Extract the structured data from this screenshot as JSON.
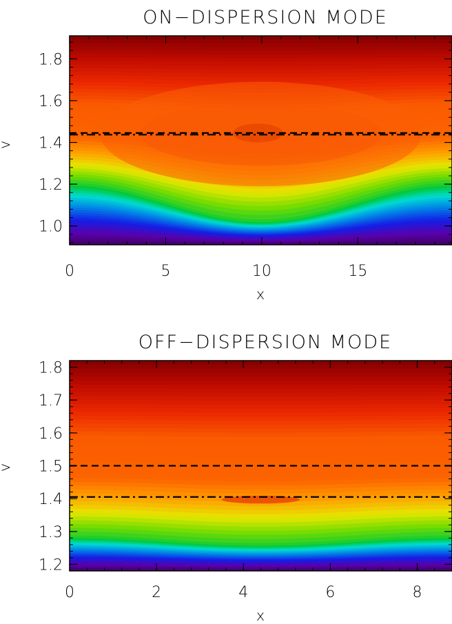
{
  "chart_data": [
    {
      "type": "heatmap",
      "title": "ON−DISPERSION MODE",
      "xlabel": "x",
      "ylabel": "v",
      "xlim": [
        0,
        19.9
      ],
      "ylim": [
        0.91,
        1.91
      ],
      "xticks": [
        0,
        5,
        10,
        15
      ],
      "yticks": [
        1.0,
        1.2,
        1.4,
        1.6,
        1.8
      ],
      "xtick_labels": [
        "0",
        "5",
        "10",
        "15"
      ],
      "ytick_labels": [
        "1.0",
        "1.2",
        "1.4",
        "1.6",
        "1.8"
      ],
      "colormap": "rainbow",
      "field": {
        "lower_boundary": {
          "mean": 1.11,
          "amplitude": 0.09,
          "period": 19.9,
          "phase_center": 9.95
        },
        "vortex": {
          "center_x": 9.95,
          "center_v": 1.44,
          "half_width_v": 0.25
        },
        "core": {
          "center_x": 9.8,
          "center_v": 1.445,
          "rx": 1.3,
          "rv": 0.045
        }
      },
      "reference_lines": [
        {
          "style": "dashed",
          "v": 1.445
        },
        {
          "style": "dash-dot",
          "v": 1.437
        }
      ],
      "grid": false,
      "legend": "none"
    },
    {
      "type": "heatmap",
      "title": "OFF−DISPERSION MODE",
      "xlabel": "x",
      "ylabel": "v",
      "xlim": [
        0,
        8.8
      ],
      "ylim": [
        1.18,
        1.82
      ],
      "xticks": [
        0,
        2,
        4,
        6,
        8
      ],
      "yticks": [
        1.2,
        1.3,
        1.4,
        1.5,
        1.6,
        1.7,
        1.8
      ],
      "xtick_labels": [
        "0",
        "2",
        "4",
        "6",
        "8"
      ],
      "ytick_labels": [
        "1.2",
        "1.3",
        "1.4",
        "1.5",
        "1.6",
        "1.7",
        "1.8"
      ],
      "colormap": "rainbow",
      "field": {
        "lower_boundary": {
          "mean": 1.27,
          "amplitude": 0.012,
          "period": 8.8,
          "phase_center": 4.4
        },
        "core": {
          "center_x": 4.4,
          "center_v": 1.397,
          "rx": 0.9,
          "rv": 0.012
        }
      },
      "reference_lines": [
        {
          "style": "dashed",
          "v": 1.5
        },
        {
          "style": "dash-dot",
          "v": 1.405
        }
      ],
      "grid": false,
      "legend": "none"
    }
  ]
}
